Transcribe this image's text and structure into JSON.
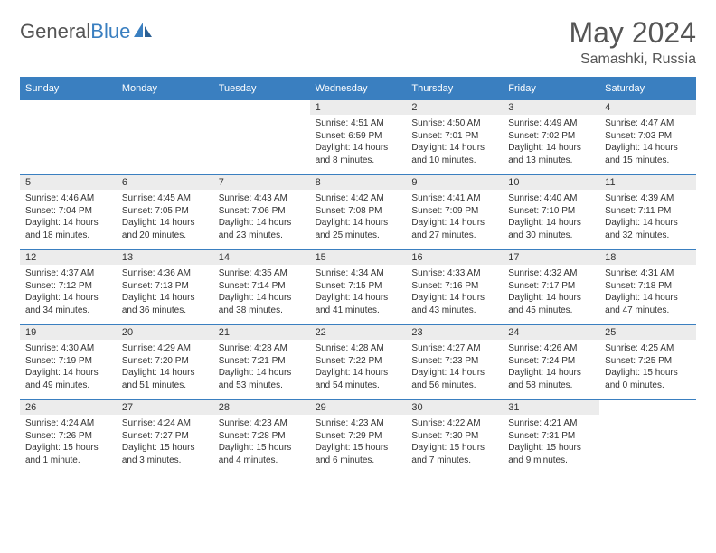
{
  "brand": {
    "name_part1": "General",
    "name_part2": "Blue"
  },
  "title": {
    "month": "May 2024",
    "location": "Samashki, Russia"
  },
  "colors": {
    "brand_blue": "#3a7fc0",
    "text_gray": "#555555",
    "cell_header_bg": "#ececec",
    "body_text": "#333333",
    "background": "#ffffff"
  },
  "day_labels": [
    "Sunday",
    "Monday",
    "Tuesday",
    "Wednesday",
    "Thursday",
    "Friday",
    "Saturday"
  ],
  "weeks": [
    [
      null,
      null,
      null,
      {
        "day": "1",
        "sunrise": "Sunrise: 4:51 AM",
        "sunset": "Sunset: 6:59 PM",
        "daylight1": "Daylight: 14 hours",
        "daylight2": "and 8 minutes."
      },
      {
        "day": "2",
        "sunrise": "Sunrise: 4:50 AM",
        "sunset": "Sunset: 7:01 PM",
        "daylight1": "Daylight: 14 hours",
        "daylight2": "and 10 minutes."
      },
      {
        "day": "3",
        "sunrise": "Sunrise: 4:49 AM",
        "sunset": "Sunset: 7:02 PM",
        "daylight1": "Daylight: 14 hours",
        "daylight2": "and 13 minutes."
      },
      {
        "day": "4",
        "sunrise": "Sunrise: 4:47 AM",
        "sunset": "Sunset: 7:03 PM",
        "daylight1": "Daylight: 14 hours",
        "daylight2": "and 15 minutes."
      }
    ],
    [
      {
        "day": "5",
        "sunrise": "Sunrise: 4:46 AM",
        "sunset": "Sunset: 7:04 PM",
        "daylight1": "Daylight: 14 hours",
        "daylight2": "and 18 minutes."
      },
      {
        "day": "6",
        "sunrise": "Sunrise: 4:45 AM",
        "sunset": "Sunset: 7:05 PM",
        "daylight1": "Daylight: 14 hours",
        "daylight2": "and 20 minutes."
      },
      {
        "day": "7",
        "sunrise": "Sunrise: 4:43 AM",
        "sunset": "Sunset: 7:06 PM",
        "daylight1": "Daylight: 14 hours",
        "daylight2": "and 23 minutes."
      },
      {
        "day": "8",
        "sunrise": "Sunrise: 4:42 AM",
        "sunset": "Sunset: 7:08 PM",
        "daylight1": "Daylight: 14 hours",
        "daylight2": "and 25 minutes."
      },
      {
        "day": "9",
        "sunrise": "Sunrise: 4:41 AM",
        "sunset": "Sunset: 7:09 PM",
        "daylight1": "Daylight: 14 hours",
        "daylight2": "and 27 minutes."
      },
      {
        "day": "10",
        "sunrise": "Sunrise: 4:40 AM",
        "sunset": "Sunset: 7:10 PM",
        "daylight1": "Daylight: 14 hours",
        "daylight2": "and 30 minutes."
      },
      {
        "day": "11",
        "sunrise": "Sunrise: 4:39 AM",
        "sunset": "Sunset: 7:11 PM",
        "daylight1": "Daylight: 14 hours",
        "daylight2": "and 32 minutes."
      }
    ],
    [
      {
        "day": "12",
        "sunrise": "Sunrise: 4:37 AM",
        "sunset": "Sunset: 7:12 PM",
        "daylight1": "Daylight: 14 hours",
        "daylight2": "and 34 minutes."
      },
      {
        "day": "13",
        "sunrise": "Sunrise: 4:36 AM",
        "sunset": "Sunset: 7:13 PM",
        "daylight1": "Daylight: 14 hours",
        "daylight2": "and 36 minutes."
      },
      {
        "day": "14",
        "sunrise": "Sunrise: 4:35 AM",
        "sunset": "Sunset: 7:14 PM",
        "daylight1": "Daylight: 14 hours",
        "daylight2": "and 38 minutes."
      },
      {
        "day": "15",
        "sunrise": "Sunrise: 4:34 AM",
        "sunset": "Sunset: 7:15 PM",
        "daylight1": "Daylight: 14 hours",
        "daylight2": "and 41 minutes."
      },
      {
        "day": "16",
        "sunrise": "Sunrise: 4:33 AM",
        "sunset": "Sunset: 7:16 PM",
        "daylight1": "Daylight: 14 hours",
        "daylight2": "and 43 minutes."
      },
      {
        "day": "17",
        "sunrise": "Sunrise: 4:32 AM",
        "sunset": "Sunset: 7:17 PM",
        "daylight1": "Daylight: 14 hours",
        "daylight2": "and 45 minutes."
      },
      {
        "day": "18",
        "sunrise": "Sunrise: 4:31 AM",
        "sunset": "Sunset: 7:18 PM",
        "daylight1": "Daylight: 14 hours",
        "daylight2": "and 47 minutes."
      }
    ],
    [
      {
        "day": "19",
        "sunrise": "Sunrise: 4:30 AM",
        "sunset": "Sunset: 7:19 PM",
        "daylight1": "Daylight: 14 hours",
        "daylight2": "and 49 minutes."
      },
      {
        "day": "20",
        "sunrise": "Sunrise: 4:29 AM",
        "sunset": "Sunset: 7:20 PM",
        "daylight1": "Daylight: 14 hours",
        "daylight2": "and 51 minutes."
      },
      {
        "day": "21",
        "sunrise": "Sunrise: 4:28 AM",
        "sunset": "Sunset: 7:21 PM",
        "daylight1": "Daylight: 14 hours",
        "daylight2": "and 53 minutes."
      },
      {
        "day": "22",
        "sunrise": "Sunrise: 4:28 AM",
        "sunset": "Sunset: 7:22 PM",
        "daylight1": "Daylight: 14 hours",
        "daylight2": "and 54 minutes."
      },
      {
        "day": "23",
        "sunrise": "Sunrise: 4:27 AM",
        "sunset": "Sunset: 7:23 PM",
        "daylight1": "Daylight: 14 hours",
        "daylight2": "and 56 minutes."
      },
      {
        "day": "24",
        "sunrise": "Sunrise: 4:26 AM",
        "sunset": "Sunset: 7:24 PM",
        "daylight1": "Daylight: 14 hours",
        "daylight2": "and 58 minutes."
      },
      {
        "day": "25",
        "sunrise": "Sunrise: 4:25 AM",
        "sunset": "Sunset: 7:25 PM",
        "daylight1": "Daylight: 15 hours",
        "daylight2": "and 0 minutes."
      }
    ],
    [
      {
        "day": "26",
        "sunrise": "Sunrise: 4:24 AM",
        "sunset": "Sunset: 7:26 PM",
        "daylight1": "Daylight: 15 hours",
        "daylight2": "and 1 minute."
      },
      {
        "day": "27",
        "sunrise": "Sunrise: 4:24 AM",
        "sunset": "Sunset: 7:27 PM",
        "daylight1": "Daylight: 15 hours",
        "daylight2": "and 3 minutes."
      },
      {
        "day": "28",
        "sunrise": "Sunrise: 4:23 AM",
        "sunset": "Sunset: 7:28 PM",
        "daylight1": "Daylight: 15 hours",
        "daylight2": "and 4 minutes."
      },
      {
        "day": "29",
        "sunrise": "Sunrise: 4:23 AM",
        "sunset": "Sunset: 7:29 PM",
        "daylight1": "Daylight: 15 hours",
        "daylight2": "and 6 minutes."
      },
      {
        "day": "30",
        "sunrise": "Sunrise: 4:22 AM",
        "sunset": "Sunset: 7:30 PM",
        "daylight1": "Daylight: 15 hours",
        "daylight2": "and 7 minutes."
      },
      {
        "day": "31",
        "sunrise": "Sunrise: 4:21 AM",
        "sunset": "Sunset: 7:31 PM",
        "daylight1": "Daylight: 15 hours",
        "daylight2": "and 9 minutes."
      },
      null
    ]
  ]
}
